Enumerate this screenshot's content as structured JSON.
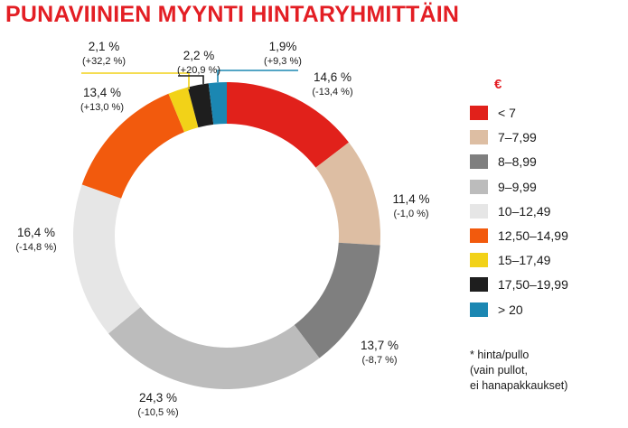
{
  "chart_data": {
    "type": "pie",
    "title": "PUNAVIINIEN MYYNTI HINTARYHMITTÄIN",
    "legend_title": "€",
    "legend_position": "right",
    "categories": [
      "< 7",
      "7–7,99",
      "8–8,99",
      "9–9,99",
      "10–12,49",
      "12,50–14,99",
      "15–17,49",
      "17,50–19,99",
      "> 20"
    ],
    "values": [
      14.6,
      11.4,
      13.7,
      24.3,
      16.4,
      13.4,
      2.1,
      2.2,
      1.9
    ],
    "value_labels": [
      "14,6 %",
      "11,4 %",
      "13,7 %",
      "24,3 %",
      "16,4 %",
      "13,4 %",
      "2,1 %",
      "2,2 %",
      "1,9%"
    ],
    "change_labels": [
      "(-13,4 %)",
      "(-1,0 %)",
      "(-8,7 %)",
      "(-10,5 %)",
      "(-14,8 %)",
      "(+13,0 %)",
      "(+32,2 %)",
      "(+20,9 %)",
      "(+9,3 %)"
    ],
    "colors": [
      "#e1211b",
      "#ddbea3",
      "#7f7f7f",
      "#bcbcbc",
      "#e6e6e6",
      "#f25a0d",
      "#f2d218",
      "#1e1e1e",
      "#1b87b2"
    ],
    "donut": true
  },
  "footnote": [
    "* hinta/pullo",
    "(vain pullot,",
    "ei hanapakkaukset)"
  ]
}
